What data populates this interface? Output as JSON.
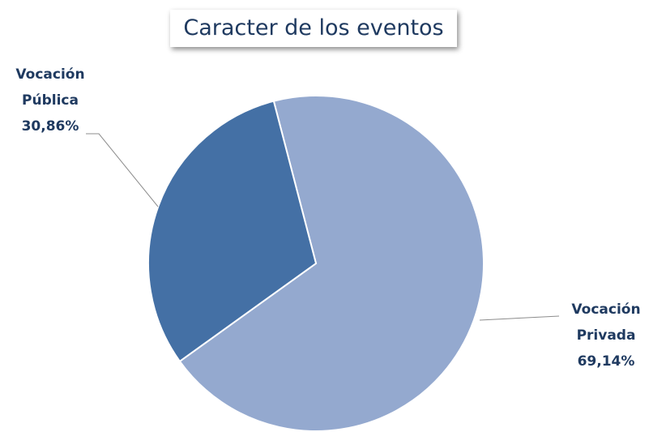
{
  "chart_data": {
    "type": "pie",
    "title": "Caracter de los eventos",
    "categories": [
      "Vocación Privada",
      "Vocación Pública"
    ],
    "values": [
      69.14,
      30.86
    ],
    "value_labels": [
      "69,14%",
      "30,86%"
    ],
    "colors": [
      "#94a9cf",
      "#4470a5"
    ]
  }
}
